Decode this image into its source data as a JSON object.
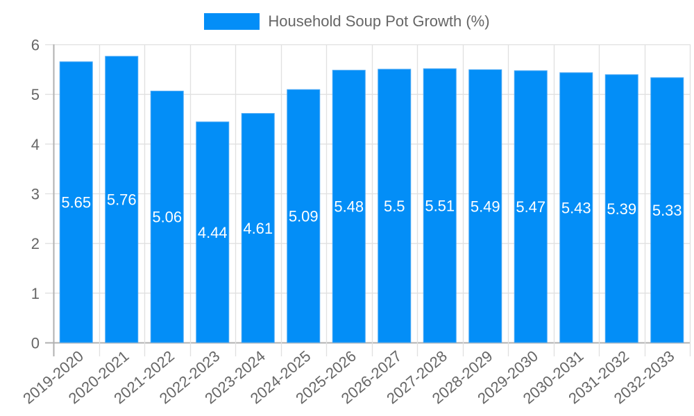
{
  "chart_data": {
    "type": "bar",
    "title": "",
    "legend": [
      {
        "label": "Household Soup Pot Growth (%)",
        "color": "#038ef7"
      }
    ],
    "legend_position": "top",
    "categories": [
      "2019-2020",
      "2020-2021",
      "2021-2022",
      "2022-2023",
      "2023-2024",
      "2024-2025",
      "2025-2026",
      "2026-2027",
      "2027-2028",
      "2028-2029",
      "2029-2030",
      "2030-2031",
      "2031-2032",
      "2032-2033"
    ],
    "series": [
      {
        "name": "Household Soup Pot Growth (%)",
        "color": "#038ef7",
        "values": [
          5.65,
          5.76,
          5.06,
          4.44,
          4.61,
          5.09,
          5.48,
          5.5,
          5.51,
          5.49,
          5.47,
          5.43,
          5.39,
          5.33
        ]
      }
    ],
    "value_labels": [
      "5.65",
      "5.76",
      "5.06",
      "4.44",
      "4.61",
      "5.09",
      "5.48",
      "5.5",
      "5.51",
      "5.49",
      "5.47",
      "5.43",
      "5.39",
      "5.33"
    ],
    "xlabel": "",
    "ylabel": "",
    "ylim": [
      0,
      6
    ],
    "yticks": [
      0,
      1,
      2,
      3,
      4,
      5,
      6
    ],
    "grid": true
  },
  "legend": {
    "label": "Household Soup Pot Growth (%)"
  }
}
